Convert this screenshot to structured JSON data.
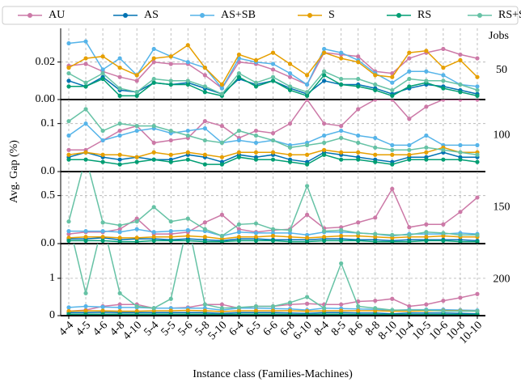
{
  "chart_data": {
    "type": "line",
    "x_label": "Instance class (Families-Machines)",
    "y_label": "Avg. Gap (%)",
    "panel_title": "Jobs",
    "grid": true,
    "categories": [
      "4-4",
      "4-5",
      "4-6",
      "4-8",
      "4-10",
      "5-4",
      "5-5",
      "5-6",
      "5-8",
      "5-10",
      "6-4",
      "6-5",
      "6-6",
      "6-8",
      "6-10",
      "8-4",
      "8-5",
      "8-6",
      "8-8",
      "8-10",
      "10-4",
      "10-5",
      "10-6",
      "10-8",
      "10-10"
    ],
    "series": [
      {
        "name": "AU",
        "color": "#cc79a7"
      },
      {
        "name": "AS",
        "color": "#0072b2"
      },
      {
        "name": "AS+SB",
        "color": "#56b4e9"
      },
      {
        "name": "S",
        "color": "#e69f00"
      },
      {
        "name": "RS",
        "color": "#009e73"
      },
      {
        "name": "RS+SB",
        "color": "#66c2a5"
      }
    ],
    "panels": [
      {
        "label": "50",
        "ylim": [
          0,
          0.038
        ],
        "yticks": [
          {
            "value": 0,
            "label": "0.00"
          },
          {
            "value": 0.02,
            "label": "0.02"
          }
        ],
        "values": [
          [
            0.018,
            0.019,
            0.015,
            0.012,
            0.01,
            0.02,
            0.019,
            0.019,
            0.013,
            0.006,
            0.02,
            0.019,
            0.016,
            0.012,
            0.008,
            0.025,
            0.024,
            0.023,
            0.015,
            0.014,
            0.022,
            0.025,
            0.027,
            0.024,
            0.022
          ],
          [
            0.01,
            0.007,
            0.012,
            0.005,
            0.004,
            0.009,
            0.008,
            0.009,
            0.006,
            0.003,
            0.011,
            0.008,
            0.01,
            0.006,
            0.003,
            0.01,
            0.008,
            0.008,
            0.006,
            0.003,
            0.006,
            0.008,
            0.007,
            0.005,
            0.003
          ],
          [
            0.03,
            0.031,
            0.016,
            0.022,
            0.013,
            0.027,
            0.023,
            0.02,
            0.017,
            0.006,
            0.022,
            0.02,
            0.019,
            0.014,
            0.008,
            0.027,
            0.025,
            0.021,
            0.014,
            0.009,
            0.015,
            0.015,
            0.013,
            0.008,
            0.007
          ],
          [
            0.017,
            0.022,
            0.023,
            0.017,
            0.013,
            0.022,
            0.023,
            0.029,
            0.017,
            0.008,
            0.024,
            0.021,
            0.025,
            0.019,
            0.013,
            0.025,
            0.022,
            0.02,
            0.013,
            0.012,
            0.025,
            0.026,
            0.017,
            0.021,
            0.012
          ],
          [
            0.007,
            0.007,
            0.011,
            0.002,
            0.002,
            0.009,
            0.008,
            0.008,
            0.004,
            0.002,
            0.012,
            0.007,
            0.01,
            0.005,
            0.002,
            0.013,
            0.008,
            0.007,
            0.005,
            0.002,
            0.007,
            0.009,
            0.006,
            0.004,
            0.002
          ],
          [
            0.014,
            0.009,
            0.014,
            0.006,
            0.004,
            0.011,
            0.01,
            0.01,
            0.007,
            0.003,
            0.014,
            0.009,
            0.012,
            0.007,
            0.004,
            0.015,
            0.011,
            0.011,
            0.008,
            0.005,
            0.011,
            0.01,
            0.01,
            0.008,
            0.005
          ]
        ]
      },
      {
        "label": "100",
        "ylim": [
          0,
          0.15
        ],
        "yticks": [
          {
            "value": 0,
            "label": "0.0"
          },
          0.1
        ],
        "values": [
          [
            0.045,
            0.045,
            0.065,
            0.085,
            0.095,
            0.06,
            0.065,
            0.07,
            0.105,
            0.095,
            0.07,
            0.085,
            0.08,
            0.1,
            0.15,
            0.1,
            0.095,
            0.13,
            0.15,
            0.15,
            0.11,
            0.135,
            0.15,
            0.15,
            0.15
          ],
          [
            0.03,
            0.04,
            0.03,
            0.025,
            0.03,
            0.025,
            0.025,
            0.035,
            0.03,
            0.02,
            0.035,
            0.03,
            0.035,
            0.025,
            0.02,
            0.04,
            0.035,
            0.03,
            0.025,
            0.02,
            0.03,
            0.03,
            0.04,
            0.03,
            0.03
          ],
          [
            0.075,
            0.1,
            0.065,
            0.075,
            0.085,
            0.09,
            0.08,
            0.085,
            0.09,
            0.06,
            0.065,
            0.06,
            0.065,
            0.055,
            0.06,
            0.075,
            0.085,
            0.075,
            0.07,
            0.055,
            0.055,
            0.075,
            0.055,
            0.055,
            0.055
          ],
          [
            0.035,
            0.04,
            0.035,
            0.035,
            0.03,
            0.04,
            0.035,
            0.04,
            0.035,
            0.03,
            0.04,
            0.04,
            0.04,
            0.035,
            0.035,
            0.045,
            0.04,
            0.04,
            0.035,
            0.035,
            0.035,
            0.04,
            0.05,
            0.04,
            0.04
          ],
          [
            0.025,
            0.025,
            0.02,
            0.015,
            0.02,
            0.025,
            0.02,
            0.025,
            0.015,
            0.015,
            0.03,
            0.025,
            0.025,
            0.02,
            0.015,
            0.035,
            0.025,
            0.025,
            0.02,
            0.015,
            0.025,
            0.025,
            0.025,
            0.025,
            0.02
          ],
          [
            0.105,
            0.13,
            0.085,
            0.1,
            0.095,
            0.095,
            0.085,
            0.075,
            0.065,
            0.06,
            0.085,
            0.075,
            0.065,
            0.05,
            0.055,
            0.06,
            0.07,
            0.06,
            0.05,
            0.045,
            0.045,
            0.05,
            0.045,
            0.04,
            0.035
          ]
        ]
      },
      {
        "label": "150",
        "ylim": [
          0,
          0.75
        ],
        "yticks": [
          {
            "value": 0,
            "label": "0.0"
          },
          0.5
        ],
        "values": [
          [
            0.1,
            0.12,
            0.12,
            0.15,
            0.26,
            0.1,
            0.1,
            0.12,
            0.22,
            0.3,
            0.15,
            0.12,
            0.14,
            0.15,
            0.3,
            0.16,
            0.17,
            0.22,
            0.27,
            0.57,
            0.17,
            0.2,
            0.2,
            0.33,
            0.48
          ],
          [
            0.05,
            0.05,
            0.06,
            0.04,
            0.05,
            0.05,
            0.04,
            0.05,
            0.04,
            0.03,
            0.05,
            0.05,
            0.04,
            0.04,
            0.04,
            0.05,
            0.05,
            0.04,
            0.04,
            0.03,
            0.04,
            0.04,
            0.04,
            0.04,
            0.03
          ],
          [
            0.13,
            0.13,
            0.13,
            0.12,
            0.15,
            0.12,
            0.13,
            0.14,
            0.13,
            0.08,
            0.12,
            0.11,
            0.11,
            0.11,
            0.09,
            0.12,
            0.12,
            0.11,
            0.1,
            0.08,
            0.1,
            0.1,
            0.1,
            0.11,
            0.1
          ],
          [
            0.06,
            0.07,
            0.07,
            0.06,
            0.06,
            0.07,
            0.07,
            0.08,
            0.07,
            0.05,
            0.07,
            0.07,
            0.08,
            0.07,
            0.06,
            0.07,
            0.08,
            0.08,
            0.07,
            0.06,
            0.07,
            0.07,
            0.08,
            0.07,
            0.07
          ],
          [
            0.03,
            0.03,
            0.03,
            0.02,
            0.02,
            0.03,
            0.03,
            0.03,
            0.02,
            0.02,
            0.03,
            0.03,
            0.03,
            0.02,
            0.02,
            0.03,
            0.03,
            0.03,
            0.02,
            0.02,
            0.02,
            0.03,
            0.03,
            0.02,
            0.02
          ],
          [
            0.23,
            0.9,
            0.22,
            0.19,
            0.23,
            0.38,
            0.23,
            0.26,
            0.15,
            0.08,
            0.2,
            0.21,
            0.15,
            0.14,
            0.6,
            0.13,
            0.14,
            0.11,
            0.1,
            0.09,
            0.09,
            0.12,
            0.11,
            0.09,
            0.09
          ]
        ]
      },
      {
        "label": "200",
        "ylim": [
          0,
          1.93
        ],
        "yticks": [
          0,
          1
        ],
        "values": [
          [
            0.12,
            0.15,
            0.25,
            0.3,
            0.3,
            0.2,
            0.2,
            0.22,
            0.3,
            0.3,
            0.2,
            0.25,
            0.25,
            0.3,
            0.32,
            0.3,
            0.3,
            0.38,
            0.4,
            0.45,
            0.25,
            0.3,
            0.4,
            0.48,
            0.58
          ],
          [
            0.08,
            0.08,
            0.09,
            0.08,
            0.08,
            0.08,
            0.08,
            0.08,
            0.08,
            0.06,
            0.08,
            0.08,
            0.08,
            0.07,
            0.06,
            0.08,
            0.08,
            0.07,
            0.07,
            0.05,
            0.07,
            0.07,
            0.07,
            0.06,
            0.05
          ],
          [
            0.22,
            0.25,
            0.23,
            0.22,
            0.22,
            0.2,
            0.2,
            0.2,
            0.2,
            0.15,
            0.2,
            0.2,
            0.19,
            0.18,
            0.15,
            0.2,
            0.19,
            0.18,
            0.17,
            0.14,
            0.16,
            0.16,
            0.16,
            0.15,
            0.14
          ],
          [
            0.12,
            0.13,
            0.13,
            0.12,
            0.12,
            0.13,
            0.13,
            0.14,
            0.13,
            0.11,
            0.13,
            0.13,
            0.13,
            0.13,
            0.12,
            0.13,
            0.13,
            0.13,
            0.13,
            0.12,
            0.12,
            0.13,
            0.13,
            0.13,
            0.12
          ],
          [
            0.04,
            0.04,
            0.04,
            0.04,
            0.04,
            0.04,
            0.04,
            0.04,
            0.04,
            0.03,
            0.04,
            0.04,
            0.04,
            0.03,
            0.03,
            0.04,
            0.04,
            0.03,
            0.03,
            0.03,
            0.03,
            0.03,
            0.03,
            0.03,
            0.03
          ],
          [
            2.5,
            0.6,
            2.5,
            0.6,
            0.25,
            0.2,
            0.45,
            2.5,
            0.3,
            0.2,
            0.22,
            0.25,
            0.25,
            0.35,
            0.5,
            0.2,
            1.4,
            0.25,
            0.2,
            0.15,
            0.15,
            0.15,
            0.12,
            0.12,
            0.12
          ]
        ]
      }
    ]
  }
}
